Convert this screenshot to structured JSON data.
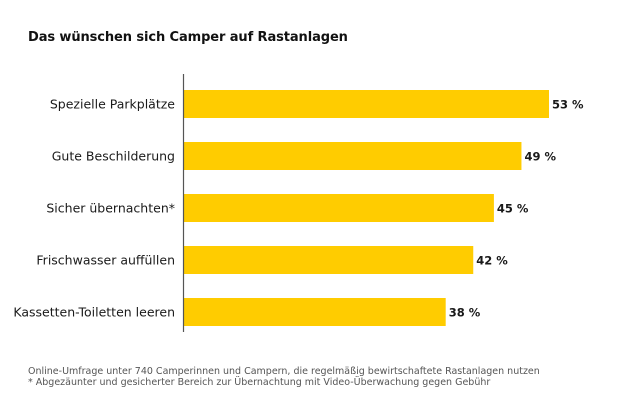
{
  "chart_data": {
    "type": "bar",
    "orientation": "horizontal",
    "title": "Das wünschen sich Camper auf Rastanlagen",
    "categories": [
      "Spezielle Parkplätze",
      "Gute Beschilderung",
      "Sicher übernachten*",
      "Frischwasser auffüllen",
      "Kassetten-Toiletten leeren"
    ],
    "values": [
      53,
      49,
      45,
      42,
      38
    ],
    "value_labels": [
      "53 %",
      "49 %",
      "45 %",
      "42 %",
      "38 %"
    ],
    "unit": "%",
    "xlim": [
      0,
      53
    ],
    "bar_color": "#FFCC00",
    "axis_color": "#555555",
    "grid": false,
    "legend": "none"
  },
  "footnotes": {
    "survey": "Online-Umfrage unter 740 Camperinnen und Campern, die regelmäßig bewirtschaftete Rastanlagen nutzen",
    "asterisk": "* Abgezäunter und gesicherter Bereich zur Übernachtung mit Video-Überwachung gegen Gebühr"
  }
}
